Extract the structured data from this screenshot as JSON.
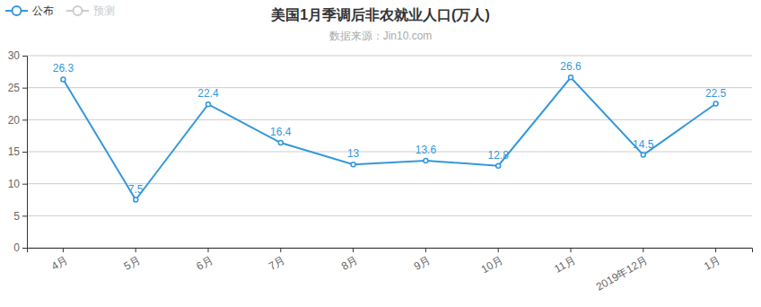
{
  "chart_data": {
    "type": "line",
    "title": "美国1月季调后非农就业人口(万人)",
    "subtitle": "数据来源：Jin10.com",
    "categories": [
      "4月",
      "5月",
      "6月",
      "7月",
      "8月",
      "9月",
      "10月",
      "11月",
      "2019年12月",
      "1月"
    ],
    "series": [
      {
        "name": "公布",
        "color": "#3398db",
        "marker": "circle",
        "values": [
          26.3,
          7.5,
          22.4,
          16.4,
          13,
          13.6,
          12.8,
          26.6,
          14.5,
          22.5
        ]
      },
      {
        "name": "预测",
        "color": "#cccccc",
        "marker": "circle",
        "values": [
          null,
          null,
          null,
          null,
          null,
          null,
          null,
          null,
          null,
          null
        ]
      }
    ],
    "ylim": [
      0,
      30
    ],
    "yticks": [
      0,
      5,
      10,
      15,
      20,
      25,
      30
    ],
    "grid": true,
    "data_labels": true,
    "legend": "top-left"
  }
}
